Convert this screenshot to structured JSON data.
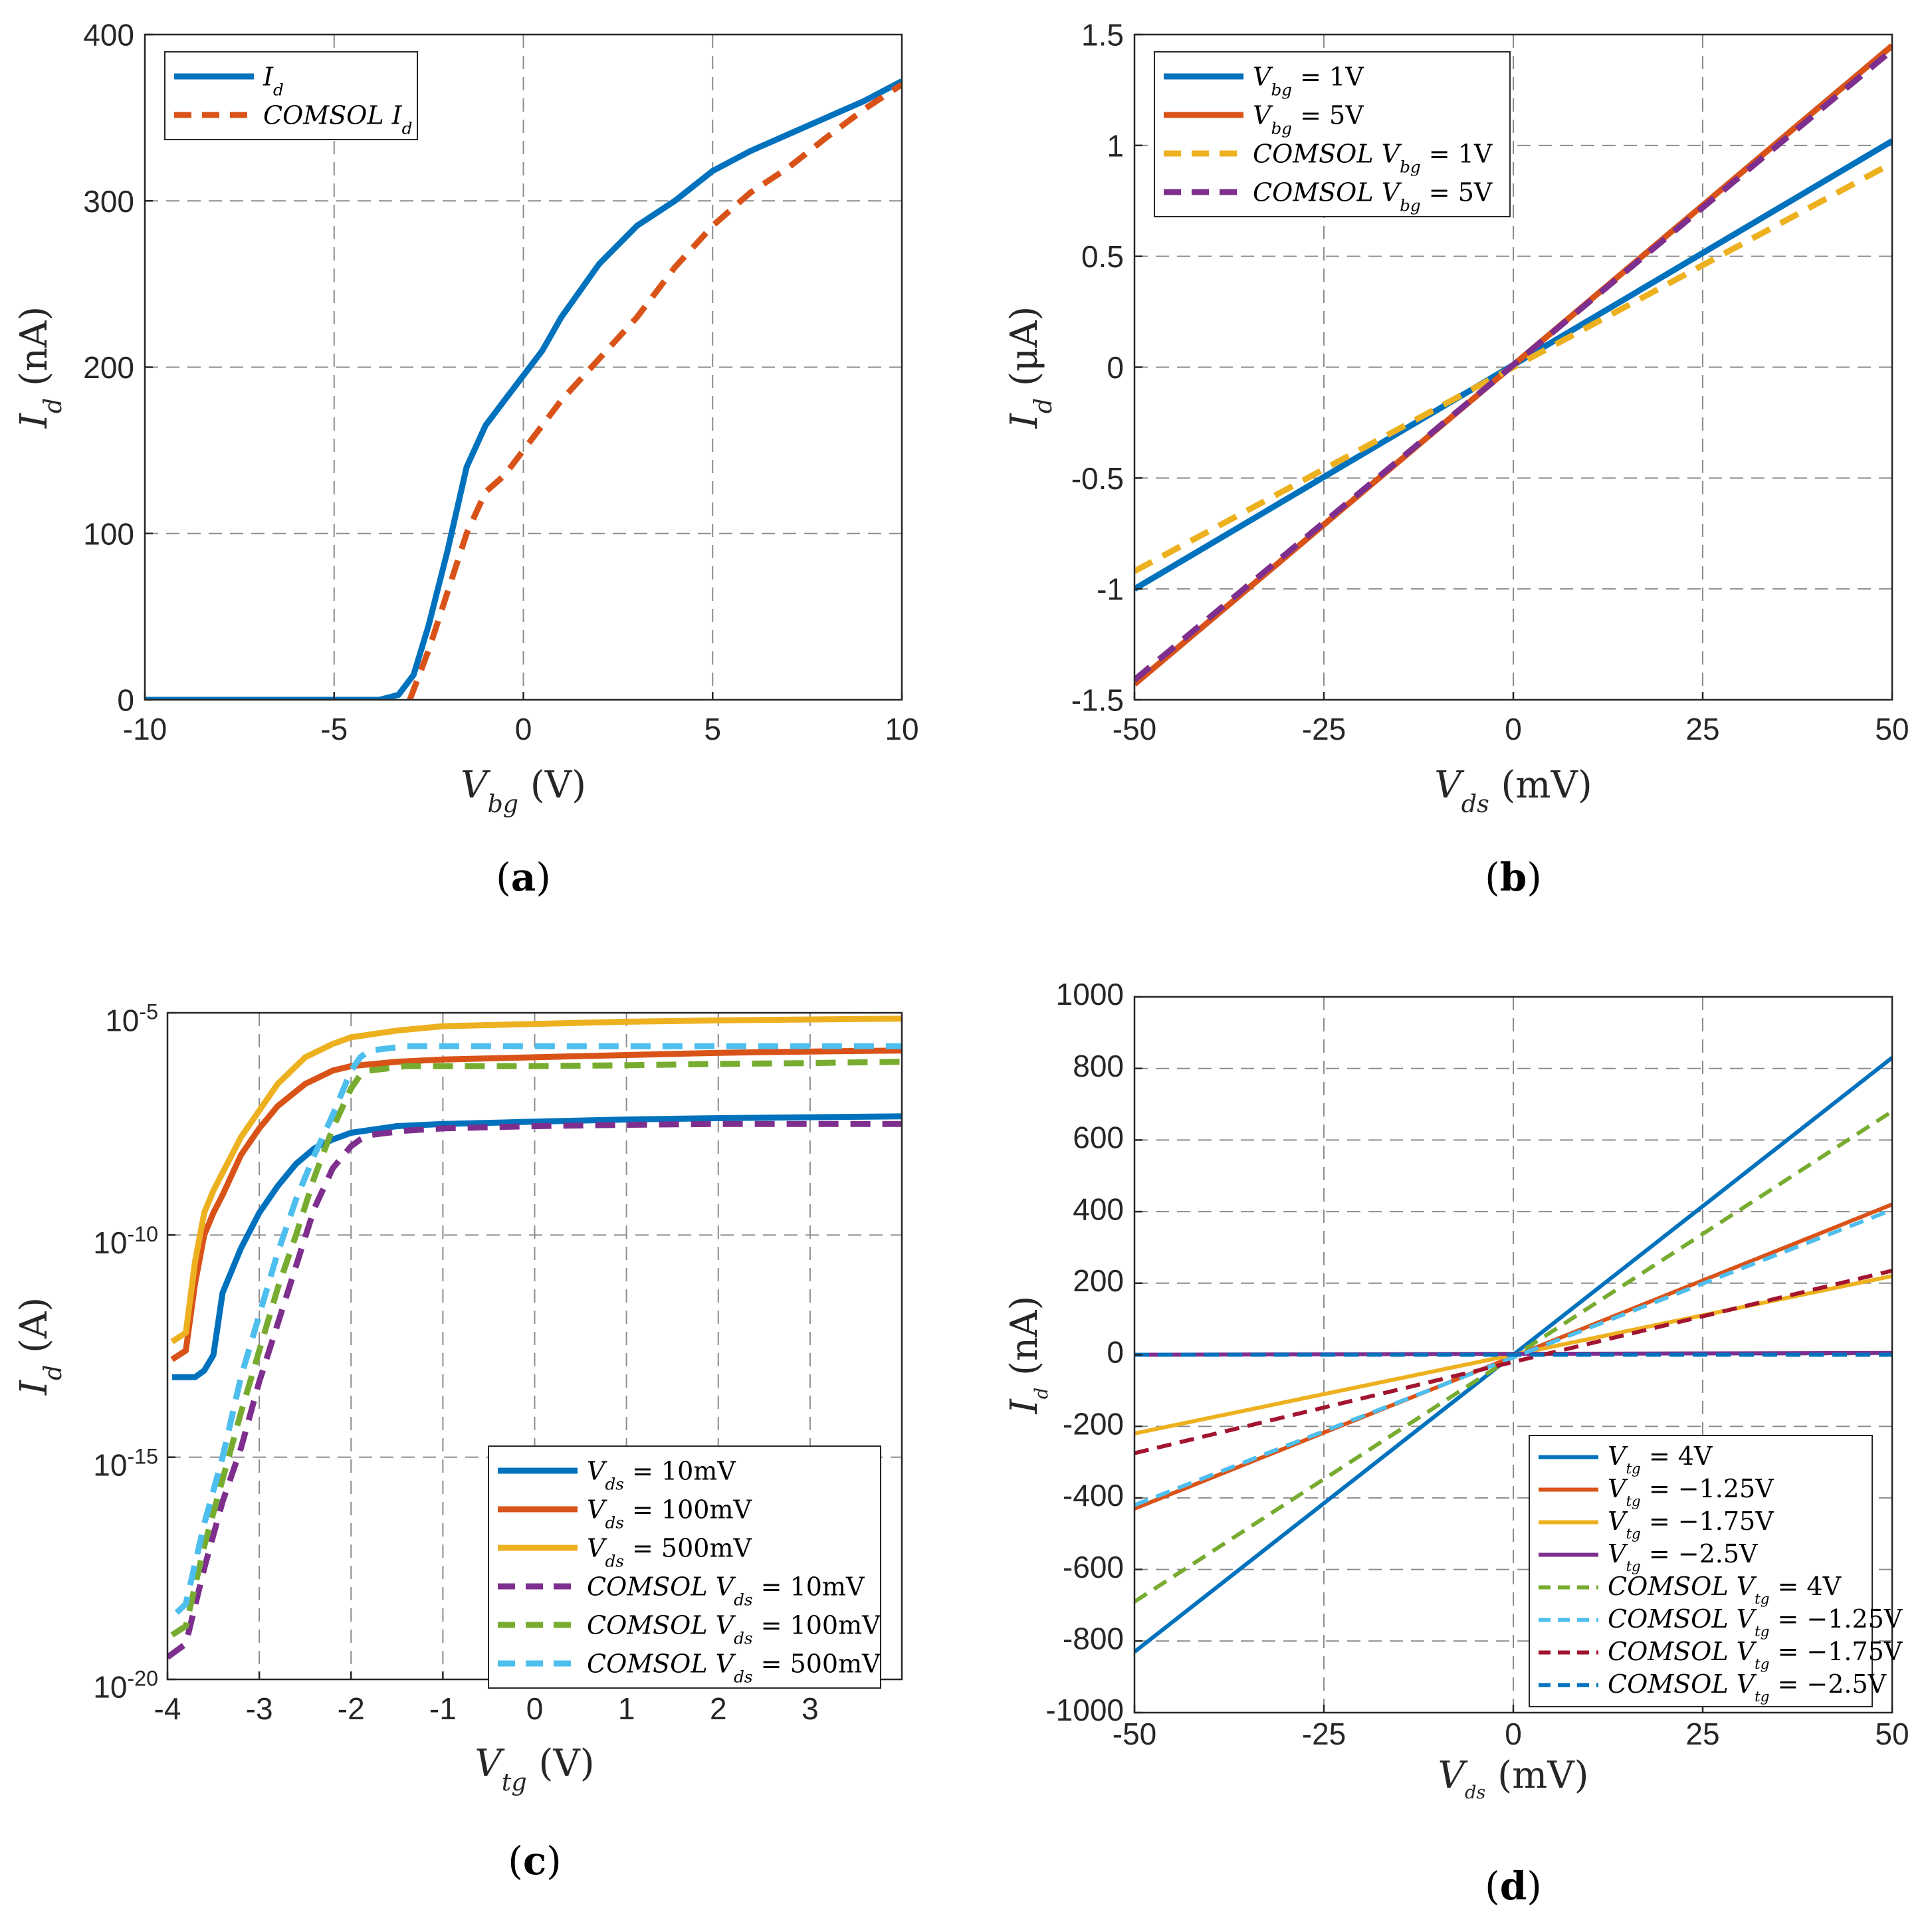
{
  "colors": {
    "blue": "#0072BD",
    "orange": "#D95319",
    "yellow": "#EDB120",
    "purple": "#7E2F8E",
    "green": "#77AC30",
    "cyan": "#4DBEEE",
    "darkred": "#A2142F"
  },
  "chart_data": [
    {
      "id": "a",
      "caption": "a",
      "type": "line",
      "scale": "linear",
      "xlabel": "V_bg (V)",
      "xlabel_parts": [
        "V",
        "bg",
        " (V)"
      ],
      "ylabel": "I_d (nA)",
      "ylabel_parts": [
        "I",
        "d",
        " (nA)"
      ],
      "xlim": [
        -10,
        10
      ],
      "ylim": [
        0,
        400
      ],
      "xticks": [
        -10,
        -5,
        0,
        5,
        10
      ],
      "yticks": [
        0,
        100,
        200,
        300,
        400
      ],
      "xticklabels": [
        "-10",
        "-5",
        "0",
        "5",
        "10"
      ],
      "yticklabels": [
        "0",
        "100",
        "200",
        "300",
        "400"
      ],
      "legend": "top-left",
      "series": [
        {
          "name": "I_d",
          "label_parts": [
            "I",
            "d",
            ""
          ],
          "color": "blue",
          "dash": false,
          "x": [
            -10,
            -5,
            -3.8,
            -3.3,
            -2.9,
            -2.5,
            -2,
            -1.5,
            -1,
            -0.5,
            0,
            0.5,
            1,
            2,
            3,
            4,
            5,
            6,
            7,
            8,
            9,
            10
          ],
          "y": [
            0,
            0,
            0,
            3,
            15,
            45,
            90,
            140,
            165,
            180,
            195,
            210,
            230,
            262,
            285,
            300,
            318,
            330,
            340,
            350,
            360,
            372
          ]
        },
        {
          "name": "COMSOL I_d",
          "label_parts": [
            "COMSOL I",
            "d",
            ""
          ],
          "color": "orange",
          "dash": true,
          "x": [
            -3,
            -2.5,
            -2,
            -1.5,
            -1,
            -0.5,
            0,
            1,
            2,
            3,
            4,
            5,
            6,
            7,
            8,
            9,
            10
          ],
          "y": [
            0,
            30,
            65,
            100,
            125,
            135,
            150,
            180,
            205,
            230,
            260,
            285,
            305,
            320,
            338,
            355,
            370
          ]
        }
      ]
    },
    {
      "id": "b",
      "caption": "b",
      "type": "line",
      "scale": "linear",
      "xlabel": "V_ds (mV)",
      "xlabel_parts": [
        "V",
        "ds",
        " (mV)"
      ],
      "ylabel": "I_d (μA)",
      "ylabel_parts": [
        "I",
        "d",
        " (μA)"
      ],
      "xlim": [
        -50,
        50
      ],
      "ylim": [
        -1.5,
        1.5
      ],
      "xticks": [
        -50,
        -25,
        0,
        25,
        50
      ],
      "yticks": [
        -1.5,
        -1,
        -0.5,
        0,
        0.5,
        1,
        1.5
      ],
      "xticklabels": [
        "-50",
        "-25",
        "0",
        "25",
        "50"
      ],
      "yticklabels": [
        "-1.5",
        "-1",
        "-0.5",
        "0",
        "0.5",
        "1",
        "1.5"
      ],
      "legend": "top-left",
      "series": [
        {
          "name": "V_bg = 1V",
          "label_parts": [
            "V",
            "bg",
            " = 1V"
          ],
          "color": "blue",
          "dash": false,
          "x": [
            -50,
            50
          ],
          "y": [
            -1.0,
            1.02
          ]
        },
        {
          "name": "V_bg = 5V",
          "label_parts": [
            "V",
            "bg",
            " = 5V"
          ],
          "color": "orange",
          "dash": false,
          "x": [
            -50,
            50
          ],
          "y": [
            -1.43,
            1.45
          ]
        },
        {
          "name": "COMSOL V_bg = 1V",
          "label_parts": [
            "COMSOL V",
            "bg",
            " = 1V"
          ],
          "color": "yellow",
          "dash": true,
          "x": [
            -50,
            50
          ],
          "y": [
            -0.92,
            0.92
          ]
        },
        {
          "name": "COMSOL V_bg = 5V",
          "label_parts": [
            "COMSOL V",
            "bg",
            " = 5V"
          ],
          "color": "purple",
          "dash": true,
          "x": [
            -50,
            50
          ],
          "y": [
            -1.41,
            1.43
          ]
        }
      ]
    },
    {
      "id": "c",
      "caption": "c",
      "type": "line",
      "scale": "log",
      "xlabel": "V_tg (V)",
      "xlabel_parts": [
        "V",
        "tg",
        " (V)"
      ],
      "ylabel": "I_d (A)",
      "ylabel_parts": [
        "I",
        "d",
        " (A)"
      ],
      "xlim": [
        -4,
        4
      ],
      "ylim": [
        -20,
        -5
      ],
      "xticks": [
        -4,
        -3,
        -2,
        -1,
        0,
        1,
        2,
        3
      ],
      "yticks": [
        -20,
        -15,
        -10,
        -5
      ],
      "xticklabels": [
        "-4",
        "-3",
        "-2",
        "-1",
        "0",
        "1",
        "2",
        "3"
      ],
      "yticklabels": [
        "10^-20",
        "10^-15",
        "10^-10",
        "10^-5"
      ],
      "ytick_base": "10",
      "ytick_exps": [
        "-20",
        "-15",
        "-10",
        "-5"
      ],
      "legend": "bottom-right",
      "series": [
        {
          "name": "V_ds = 10mV",
          "label_parts": [
            "V",
            "ds",
            " = 10mV"
          ],
          "color": "blue",
          "dash": false,
          "x": [
            -3.95,
            -3.7,
            -3.6,
            -3.5,
            -3.4,
            -3.2,
            -3,
            -2.8,
            -2.6,
            -2.4,
            -2.2,
            -2,
            -1.5,
            -1,
            0,
            1,
            2,
            3,
            4
          ],
          "y": [
            -13.2,
            -13.2,
            -13.05,
            -12.7,
            -11.3,
            -10.3,
            -9.5,
            -8.9,
            -8.4,
            -8.05,
            -7.85,
            -7.7,
            -7.55,
            -7.5,
            -7.45,
            -7.4,
            -7.37,
            -7.35,
            -7.33
          ]
        },
        {
          "name": "V_ds = 100mV",
          "label_parts": [
            "V",
            "ds",
            " = 100mV"
          ],
          "color": "orange",
          "dash": false,
          "x": [
            -3.95,
            -3.8,
            -3.7,
            -3.6,
            -3.5,
            -3.4,
            -3.2,
            -3,
            -2.8,
            -2.5,
            -2.2,
            -2,
            -1.5,
            -1,
            0,
            1,
            2,
            3,
            4
          ],
          "y": [
            -12.8,
            -12.6,
            -11.1,
            -10,
            -9.5,
            -9.1,
            -8.2,
            -7.6,
            -7.1,
            -6.6,
            -6.3,
            -6.2,
            -6.1,
            -6.05,
            -6.0,
            -5.95,
            -5.9,
            -5.87,
            -5.85
          ]
        },
        {
          "name": "V_ds = 500mV",
          "label_parts": [
            "V",
            "ds",
            " = 500mV"
          ],
          "color": "yellow",
          "dash": false,
          "x": [
            -3.95,
            -3.8,
            -3.7,
            -3.6,
            -3.5,
            -3.4,
            -3.2,
            -3,
            -2.8,
            -2.5,
            -2.2,
            -2,
            -1.5,
            -1,
            0,
            1,
            2,
            3,
            4
          ],
          "y": [
            -12.4,
            -12.2,
            -10.6,
            -9.5,
            -9.0,
            -8.6,
            -7.8,
            -7.2,
            -6.6,
            -6.0,
            -5.7,
            -5.55,
            -5.4,
            -5.3,
            -5.25,
            -5.2,
            -5.17,
            -5.15,
            -5.13
          ]
        },
        {
          "name": "COMSOL V_ds = 10mV",
          "label_parts": [
            "COMSOL V",
            "ds",
            " = 10mV"
          ],
          "color": "purple",
          "dash": true,
          "x": [
            -4,
            -3.8,
            -3.6,
            -3.4,
            -3.2,
            -3,
            -2.8,
            -2.6,
            -2.4,
            -2.2,
            -2.0,
            -1.9,
            -1.8,
            -1.6,
            -1.4,
            -1,
            0,
            1,
            2,
            3,
            4
          ],
          "y": [
            -19.5,
            -19.2,
            -17.5,
            -16.0,
            -14.8,
            -13.3,
            -12.0,
            -10.7,
            -9.4,
            -8.5,
            -8.0,
            -7.85,
            -7.75,
            -7.7,
            -7.65,
            -7.6,
            -7.55,
            -7.52,
            -7.5,
            -7.5,
            -7.5
          ]
        },
        {
          "name": "COMSOL V_ds = 100mV",
          "label_parts": [
            "COMSOL V",
            "ds",
            " = 100mV"
          ],
          "color": "green",
          "dash": true,
          "x": [
            -3.95,
            -3.8,
            -3.6,
            -3.4,
            -3.2,
            -3,
            -2.8,
            -2.6,
            -2.4,
            -2.2,
            -2.0,
            -1.9,
            -1.8,
            -1.6,
            -1.4,
            -1,
            0,
            1,
            2,
            3,
            4
          ],
          "y": [
            -19.0,
            -18.8,
            -17.0,
            -15.5,
            -14.0,
            -12.6,
            -11.2,
            -10.0,
            -8.7,
            -7.6,
            -6.7,
            -6.4,
            -6.3,
            -6.25,
            -6.2,
            -6.2,
            -6.2,
            -6.18,
            -6.15,
            -6.13,
            -6.1
          ]
        },
        {
          "name": "COMSOL V_ds = 500mV",
          "label_parts": [
            "COMSOL V",
            "ds",
            " = 500mV"
          ],
          "color": "cyan",
          "dash": true,
          "x": [
            -3.9,
            -3.8,
            -3.6,
            -3.4,
            -3.2,
            -3,
            -2.8,
            -2.6,
            -2.4,
            -2.2,
            -2.0,
            -1.9,
            -1.8,
            -1.6,
            -1.4,
            -1,
            0,
            1,
            2,
            3,
            4
          ],
          "y": [
            -18.5,
            -18.3,
            -16.5,
            -15.0,
            -13.2,
            -11.8,
            -10.4,
            -9.2,
            -8.2,
            -7.3,
            -6.3,
            -6.0,
            -5.85,
            -5.8,
            -5.75,
            -5.75,
            -5.75,
            -5.75,
            -5.75,
            -5.75,
            -5.75
          ]
        }
      ]
    },
    {
      "id": "d",
      "caption": "d",
      "type": "line",
      "scale": "linear",
      "xlabel": "V_ds (mV)",
      "xlabel_parts": [
        "V",
        "ds",
        " (mV)"
      ],
      "ylabel": "I_d (nA)",
      "ylabel_parts": [
        "I",
        "d",
        " (nA)"
      ],
      "xlim": [
        -50,
        50
      ],
      "ylim": [
        -1000,
        1000
      ],
      "xticks": [
        -50,
        -25,
        0,
        25,
        50
      ],
      "yticks": [
        -1000,
        -800,
        -600,
        -400,
        -200,
        0,
        200,
        400,
        600,
        800,
        1000
      ],
      "xticklabels": [
        "-50",
        "-25",
        "0",
        "25",
        "50"
      ],
      "yticklabels": [
        "-1000",
        "-800",
        "-600",
        "-400",
        "-200",
        "0",
        "200",
        "400",
        "600",
        "800",
        "1000"
      ],
      "legend": "bottom-right",
      "series": [
        {
          "name": "V_tg = 4V",
          "label_parts": [
            "V",
            "tg",
            " = 4V"
          ],
          "color": "blue",
          "dash": false,
          "x": [
            -50,
            50
          ],
          "y": [
            -830,
            830
          ]
        },
        {
          "name": "V_tg = −1.25V",
          "label_parts": [
            "V",
            "tg",
            " = −1.25V"
          ],
          "color": "orange",
          "dash": false,
          "x": [
            -50,
            50
          ],
          "y": [
            -430,
            420
          ]
        },
        {
          "name": "V_tg = −1.75V",
          "label_parts": [
            "V",
            "tg",
            " = −1.75V"
          ],
          "color": "yellow",
          "dash": false,
          "x": [
            -50,
            50
          ],
          "y": [
            -220,
            220
          ]
        },
        {
          "name": "V_tg = −2.5V",
          "label_parts": [
            "V",
            "tg",
            " = −2.5V"
          ],
          "color": "purple",
          "dash": false,
          "x": [
            -50,
            50
          ],
          "y": [
            0,
            5
          ]
        },
        {
          "name": "COMSOL V_tg = 4V",
          "label_parts": [
            "COMSOL V",
            "tg",
            " = 4V"
          ],
          "color": "green",
          "dash": true,
          "x": [
            -50,
            50
          ],
          "y": [
            -690,
            680
          ]
        },
        {
          "name": "COMSOL V_tg = −1.25V",
          "label_parts": [
            "COMSOL V",
            "tg",
            " = −1.25V"
          ],
          "color": "cyan",
          "dash": true,
          "x": [
            -50,
            50
          ],
          "y": [
            -420,
            405
          ]
        },
        {
          "name": "COMSOL V_tg = −1.75V",
          "label_parts": [
            "COMSOL V",
            "tg",
            " = −1.75V"
          ],
          "color": "darkred",
          "dash": true,
          "x": [
            -50,
            50
          ],
          "y": [
            -275,
            235
          ]
        },
        {
          "name": "COMSOL V_tg = −2.5V",
          "label_parts": [
            "COMSOL V",
            "tg",
            " = −2.5V"
          ],
          "color": "blue",
          "dash": true,
          "x": [
            -50,
            50
          ],
          "y": [
            0,
            0
          ]
        }
      ]
    }
  ]
}
